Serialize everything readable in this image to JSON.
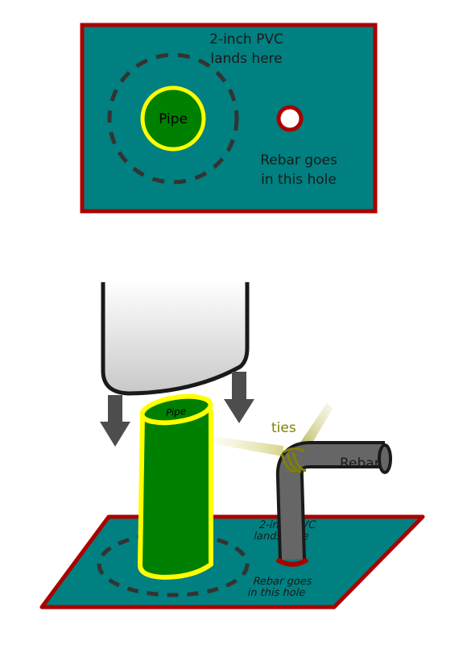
{
  "top_view": {
    "pvc_label_line1": "2-inch PVC",
    "pvc_label_line2": "lands here",
    "pipe_label": "Pipe",
    "rebar_label_line1": "Rebar goes",
    "rebar_label_line2": "in this hole"
  },
  "perspective_view": {
    "pipe_label": "Pipe",
    "ties_label": "ties",
    "rebar_label": "Rebar",
    "plate_label_pvc_line1": "2-inch PVC",
    "plate_label_pvc_line2": "lands here",
    "plate_label_rebar_line1": "Rebar goes",
    "plate_label_rebar_line2": "in this hole"
  },
  "colors": {
    "plate_fill": "#008080",
    "plate_border": "#aa0000",
    "pipe_fill": "#008000",
    "pipe_outline": "#ffff00",
    "ties_color": "#808000",
    "arrow_color": "#4d4d4d",
    "rebar_color": "#666666"
  }
}
